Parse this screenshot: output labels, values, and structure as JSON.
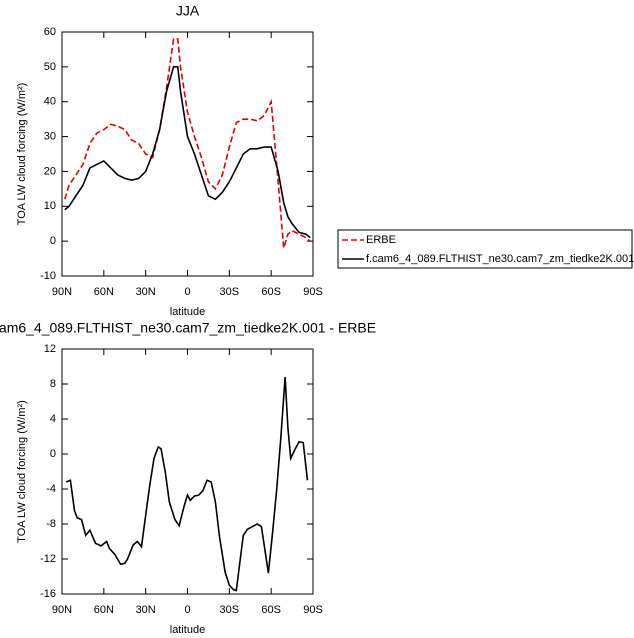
{
  "chart_data": [
    {
      "type": "line",
      "title": "JJA",
      "xlabel": "latitude",
      "ylabel": "TOA LW cloud forcing (W/m²)",
      "x": [
        88,
        85,
        80,
        75,
        70,
        65,
        60,
        55,
        50,
        45,
        40,
        35,
        30,
        25,
        20,
        15,
        10,
        7,
        5,
        0,
        -5,
        -10,
        -15,
        -20,
        -25,
        -30,
        -35,
        -40,
        -45,
        -50,
        -55,
        -60,
        -65,
        -69,
        -72,
        -75,
        -80,
        -85,
        -88
      ],
      "xlim": [
        90,
        -90
      ],
      "xticks": [
        {
          "value": 90,
          "label": "90N"
        },
        {
          "value": 60,
          "label": "60N"
        },
        {
          "value": 30,
          "label": "30N"
        },
        0,
        {
          "value": -30,
          "label": "30S"
        },
        {
          "value": -60,
          "label": "60S"
        },
        {
          "value": -90,
          "label": "90S"
        }
      ],
      "ylim": [
        -10,
        60
      ],
      "yticks": [
        -10,
        0,
        10,
        20,
        30,
        40,
        50,
        60
      ],
      "legend": "right",
      "series": [
        {
          "name": "ERBE",
          "color": "#e00000",
          "dashed": true,
          "values": [
            12,
            16,
            19,
            22,
            28,
            31,
            32,
            33.5,
            33,
            32,
            29,
            28,
            25,
            24,
            32,
            44,
            58,
            58,
            50,
            37,
            30,
            24,
            17,
            15,
            19,
            27,
            34,
            35,
            35,
            34.5,
            36,
            40,
            17,
            -2,
            2,
            3,
            2,
            1,
            0
          ]
        },
        {
          "name": "f.cam6_4_089.FLTHIST_ne30.cam7_zm_tiedke2K.001",
          "color": "#000000",
          "dashed": false,
          "values": [
            9,
            10,
            13,
            16,
            21,
            22,
            23,
            21,
            19,
            18,
            17.5,
            18,
            20,
            25,
            32,
            43,
            50,
            50,
            43,
            30,
            25,
            19,
            13,
            12,
            14,
            17,
            21,
            25,
            26.5,
            26.5,
            27,
            27,
            20,
            11,
            7,
            5,
            2.5,
            2,
            1
          ]
        }
      ]
    },
    {
      "type": "line",
      "title": "am6_4_089.FLTHIST_ne30.cam7_zm_tiedke2K.001 - ERBE",
      "xlabel": "latitude",
      "ylabel": "TOA LW cloud forcing (W/m²)",
      "x": [
        87,
        84,
        81,
        79,
        76,
        73,
        70,
        66,
        62,
        58,
        56,
        52,
        48,
        45,
        43,
        39,
        36,
        33,
        30,
        27,
        24,
        21,
        19,
        16,
        13,
        9,
        6,
        2.5,
        0,
        -2,
        -5,
        -8,
        -11,
        -14,
        -17,
        -20,
        -23,
        -27,
        -30,
        -33,
        -35,
        -40,
        -43,
        -50,
        -53,
        -58,
        -61,
        -64,
        -67,
        -70,
        -72,
        -74,
        -77,
        -80,
        -83,
        -86
      ],
      "xlim": [
        90,
        -90
      ],
      "xticks": [
        {
          "value": 90,
          "label": "90N"
        },
        {
          "value": 60,
          "label": "60N"
        },
        {
          "value": 30,
          "label": "30N"
        },
        0,
        {
          "value": -30,
          "label": "30S"
        },
        {
          "value": -60,
          "label": "60S"
        },
        {
          "value": -90,
          "label": "90S"
        }
      ],
      "ylim": [
        -16,
        12
      ],
      "yticks": [
        -16,
        -12,
        -8,
        -4,
        0,
        4,
        8,
        12
      ],
      "values": [
        -3.2,
        -3,
        -6.5,
        -7.3,
        -7.5,
        -9.3,
        -8.7,
        -10.2,
        -10.5,
        -10,
        -10.8,
        -11.5,
        -12.6,
        -12.5,
        -12,
        -10.4,
        -10,
        -10.6,
        -7,
        -3.5,
        -0.5,
        0.8,
        0.6,
        -2,
        -5.5,
        -7.5,
        -8.2,
        -6,
        -4.7,
        -5.3,
        -4.8,
        -4.7,
        -4.2,
        -3,
        -3.2,
        -5.5,
        -9.5,
        -13.5,
        -15,
        -15.5,
        -15.6,
        -9.3,
        -8.6,
        -8,
        -8.3,
        -13.6,
        -9,
        -4,
        2,
        8.8,
        3,
        -0.5,
        0.5,
        1.4,
        1.3,
        -3
      ],
      "color": "#000000"
    }
  ]
}
